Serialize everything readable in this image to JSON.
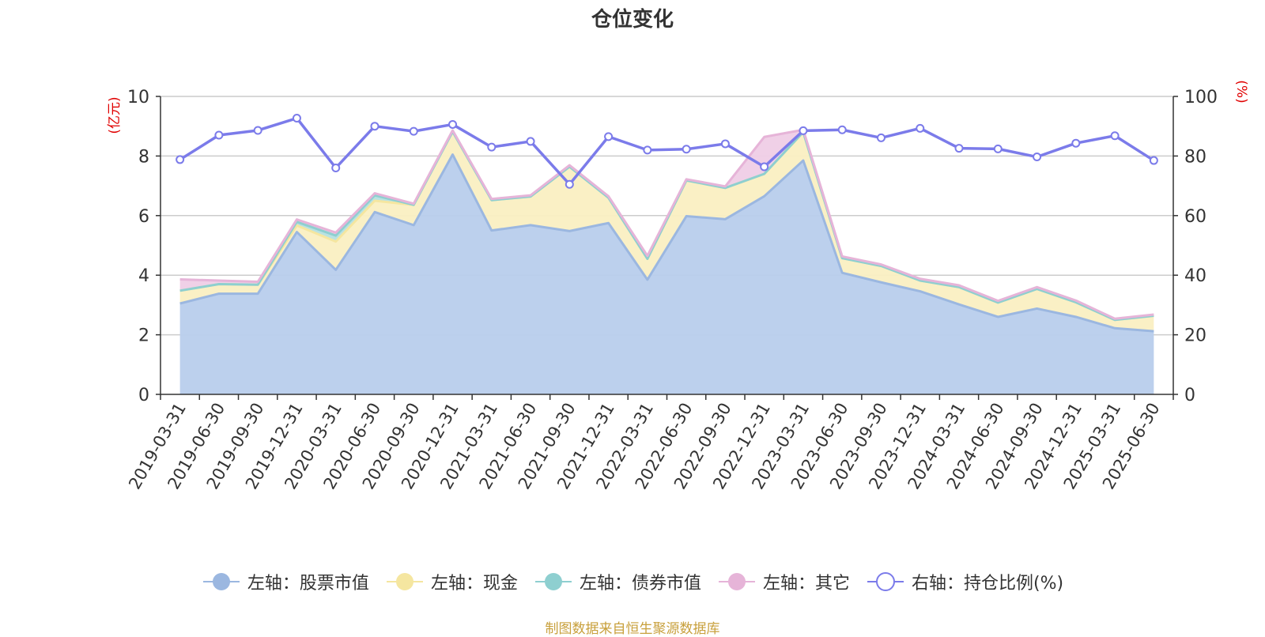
{
  "chart_data": {
    "type": "area",
    "title": "仓位变化",
    "source_note": "制图数据来自恒生聚源数据库",
    "y_left_label": "(亿元)",
    "y_right_label": "(%)",
    "y_left_range": [
      0,
      10
    ],
    "y_right_range": [
      0,
      100
    ],
    "y_left_ticks": [
      "0",
      "2",
      "4",
      "6",
      "8",
      "10"
    ],
    "y_right_ticks": [
      "0",
      "20",
      "40",
      "60",
      "80",
      "100"
    ],
    "grid": true,
    "legend_position": "bottom",
    "categories": [
      "2019-03-31",
      "2019-06-30",
      "2019-09-30",
      "2019-12-31",
      "2020-03-31",
      "2020-06-30",
      "2020-09-30",
      "2020-12-31",
      "2021-03-31",
      "2021-06-30",
      "2021-09-30",
      "2021-12-31",
      "2022-03-31",
      "2022-06-30",
      "2022-09-30",
      "2022-12-31",
      "2023-03-31",
      "2023-06-30",
      "2023-09-30",
      "2023-12-31",
      "2024-03-31",
      "2024-06-30",
      "2024-09-30",
      "2024-12-31",
      "2025-03-31",
      "2025-06-30"
    ],
    "series": [
      {
        "name": "左轴：股票市值",
        "axis": "left",
        "kind": "stacked-area",
        "color": "#9bb7e0",
        "fill": "#b8cdec",
        "values": [
          3.05,
          3.38,
          3.38,
          5.45,
          4.18,
          6.12,
          5.68,
          8.05,
          5.5,
          5.68,
          5.48,
          5.75,
          3.85,
          5.98,
          5.88,
          6.65,
          7.85,
          4.08,
          3.76,
          3.46,
          3.02,
          2.6,
          2.88,
          2.6,
          2.22,
          2.12
        ]
      },
      {
        "name": "左轴：现金",
        "axis": "left",
        "kind": "stacked-area",
        "color": "#f5e6a0",
        "fill": "#faefc2",
        "values": [
          0.43,
          0.32,
          0.3,
          0.22,
          0.95,
          0.38,
          0.68,
          0.77,
          1.02,
          0.96,
          2.16,
          0.85,
          0.7,
          1.2,
          1.05,
          0.75,
          0.95,
          0.49,
          0.55,
          0.36,
          0.58,
          0.48,
          0.66,
          0.49,
          0.28,
          0.52
        ]
      },
      {
        "name": "左轴：债券市值",
        "axis": "left",
        "kind": "stacked-area",
        "color": "#8ecfd0",
        "fill": "#b5e0e0",
        "values": [
          0,
          0,
          0,
          0.12,
          0.2,
          0.18,
          0,
          0,
          0,
          0,
          0,
          0,
          0,
          0,
          0,
          0,
          0,
          0,
          0,
          0,
          0,
          0,
          0,
          0,
          0,
          0
        ]
      },
      {
        "name": "左轴：其它",
        "axis": "left",
        "kind": "stacked-area",
        "color": "#e6b4d8",
        "fill": "#efcde6",
        "values": [
          0.38,
          0.12,
          0.1,
          0.08,
          0.1,
          0.07,
          0.04,
          0.04,
          0.04,
          0.04,
          0.05,
          0.05,
          0.1,
          0.04,
          0.05,
          1.24,
          0.08,
          0.06,
          0.05,
          0.06,
          0.06,
          0.06,
          0.06,
          0.06,
          0.04,
          0.04
        ]
      },
      {
        "name": "右轴：持仓比例(%)",
        "axis": "right",
        "kind": "line",
        "color": "#7b7bea",
        "values": [
          78.8,
          87.0,
          88.6,
          92.7,
          76.0,
          90.0,
          88.3,
          90.6,
          83.0,
          84.9,
          70.5,
          86.5,
          82.0,
          82.3,
          84.1,
          76.4,
          88.5,
          88.8,
          86.1,
          89.3,
          82.6,
          82.4,
          79.7,
          84.3,
          86.8,
          78.5
        ]
      }
    ]
  }
}
